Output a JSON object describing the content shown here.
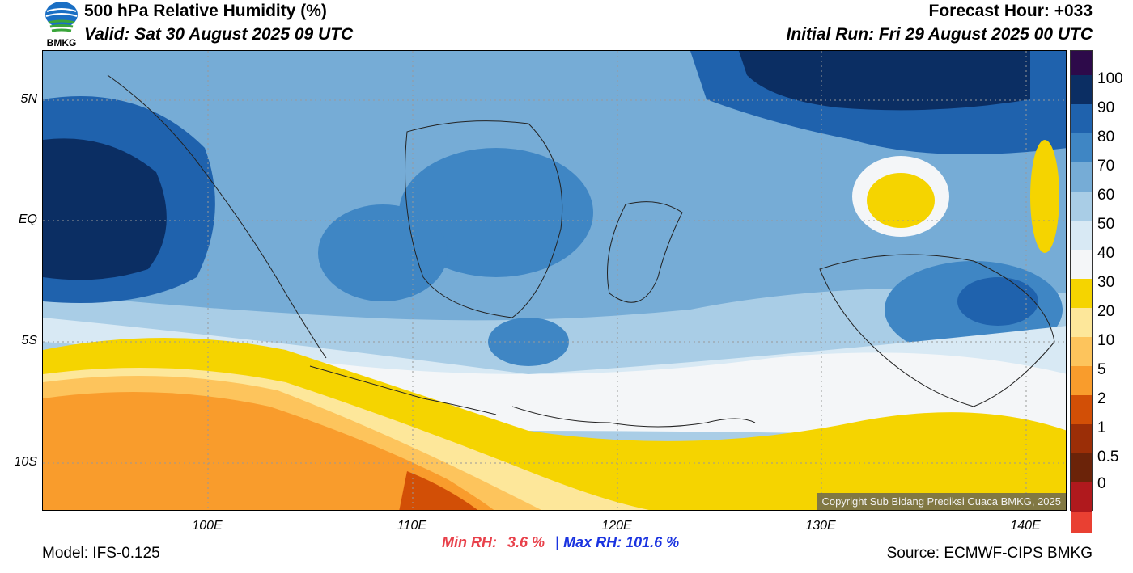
{
  "header": {
    "title": "500 hPa Relative Humidity (%)",
    "valid": "Valid: Sat 30 August 2025 09 UTC",
    "forecast_hour": "Forecast Hour: +033",
    "initial_run": "Initial Run: Fri 29 August 2025 00 UTC",
    "logo_text": "BMKG"
  },
  "map": {
    "lat_labels": [
      "5N",
      "EQ",
      "5S",
      "10S"
    ],
    "lon_labels": [
      "100E",
      "110E",
      "120E",
      "130E",
      "140E"
    ],
    "copyright": "Copyright Sub Bidang Prediksi Cuaca BMKG, 2025"
  },
  "colorbar": {
    "labels": [
      "100",
      "90",
      "80",
      "70",
      "60",
      "50",
      "40",
      "30",
      "20",
      "10",
      "5",
      "2",
      "1",
      "0.5",
      "0"
    ],
    "colors": [
      "#2d0a4a",
      "#0b2e63",
      "#1f62ad",
      "#3f86c4",
      "#76acd6",
      "#a9cde6",
      "#d8e9f4",
      "#f4f6f8",
      "#f5d400",
      "#fde79a",
      "#fdc45c",
      "#f99c2c",
      "#d24f06",
      "#9b2e07",
      "#6b2309",
      "#b0191d",
      "#e94032"
    ]
  },
  "stats": {
    "min_label": "Min RH:",
    "min_value": "3.6 %",
    "sep": "|",
    "max_label": "Max RH:",
    "max_value": "101.6 %"
  },
  "footer": {
    "model": "Model: IFS-0.125",
    "source": "Source: ECMWF-CIPS BMKG"
  }
}
